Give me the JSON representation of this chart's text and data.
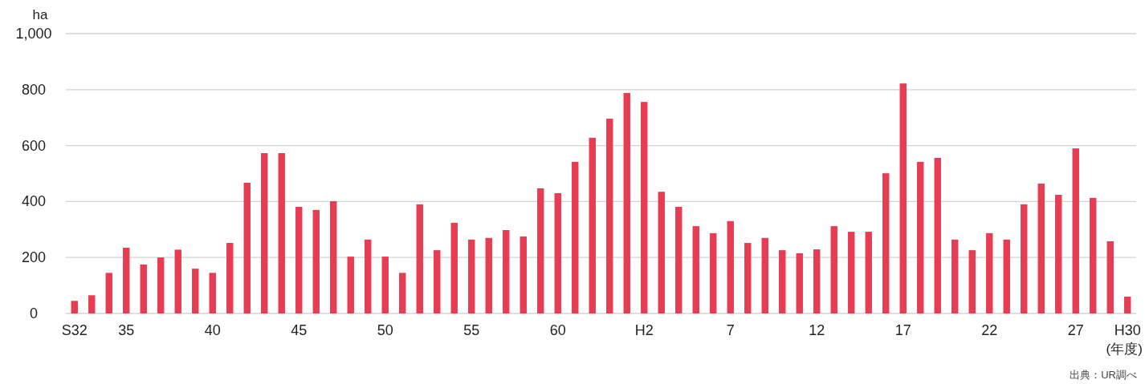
{
  "chart_data": {
    "type": "bar",
    "ylabel": "ha",
    "xlabel": "(年度)",
    "annotations": [
      "出典：UR調べ"
    ],
    "categories": [
      "S32",
      null,
      null,
      "35",
      null,
      null,
      null,
      null,
      "40",
      null,
      null,
      null,
      null,
      "45",
      null,
      null,
      null,
      null,
      "50",
      null,
      null,
      null,
      null,
      "55",
      null,
      null,
      null,
      null,
      "60",
      null,
      null,
      null,
      null,
      "H2",
      null,
      null,
      null,
      null,
      "7",
      null,
      null,
      null,
      null,
      "12",
      null,
      null,
      null,
      null,
      "17",
      null,
      null,
      null,
      null,
      "22",
      null,
      null,
      null,
      null,
      "27",
      null,
      null,
      "H30"
    ],
    "values": [
      45,
      65,
      145,
      235,
      175,
      200,
      228,
      160,
      145,
      252,
      467,
      573,
      573,
      381,
      370,
      401,
      203,
      264,
      203,
      145,
      390,
      226,
      324,
      264,
      270,
      298,
      275,
      447,
      430,
      542,
      628,
      696,
      788,
      756,
      435,
      381,
      312,
      287,
      330,
      252,
      270,
      226,
      215,
      229,
      312,
      292,
      292,
      501,
      822,
      542,
      556,
      264,
      226,
      287,
      264,
      390,
      464,
      424,
      590,
      413,
      258,
      60
    ],
    "color": "#e83c52",
    "ylim": [
      0,
      1000
    ],
    "yticks": [
      0,
      200,
      400,
      600,
      800,
      {
        "value": 1000,
        "label": "1,000"
      }
    ],
    "grid": "y"
  }
}
